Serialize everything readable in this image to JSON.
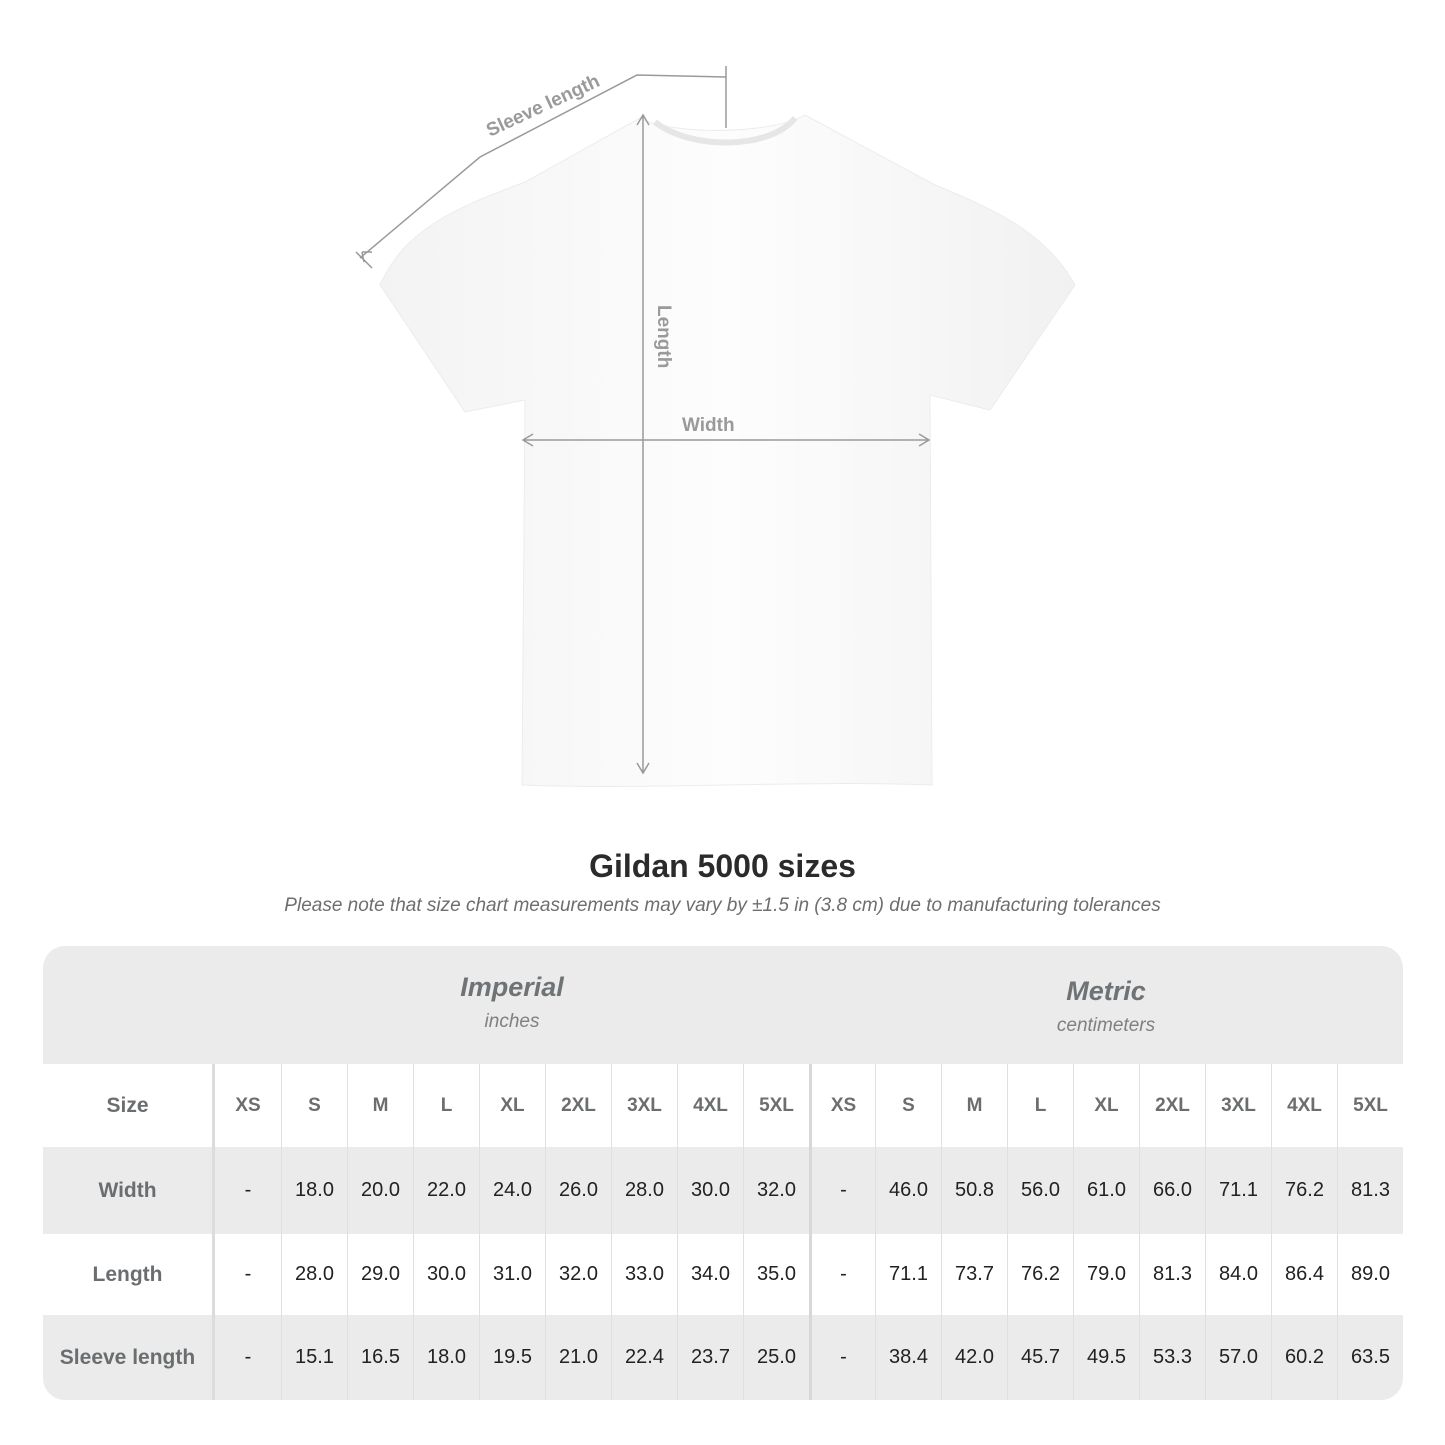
{
  "diagram": {
    "labels": {
      "sleeve": "Sleeve length",
      "length": "Length",
      "width": "Width"
    },
    "colors": {
      "shirt": "#fafafa",
      "lines": "#9a9a9a"
    }
  },
  "title": "Gildan 5000 sizes",
  "note": "Please note that size chart measurements may vary by ±1.5 in (3.8 cm) due to manufacturing tolerances",
  "table": {
    "imperial": {
      "title": "Imperial",
      "unit": "inches"
    },
    "metric": {
      "title": "Metric",
      "unit": "centimeters"
    },
    "size_label": "Size",
    "sizes": [
      "XS",
      "S",
      "M",
      "L",
      "XL",
      "2XL",
      "3XL",
      "4XL",
      "5XL"
    ],
    "rows": [
      {
        "label": "Width",
        "imperial": [
          "-",
          "18.0",
          "20.0",
          "22.0",
          "24.0",
          "26.0",
          "28.0",
          "30.0",
          "32.0"
        ],
        "metric": [
          "-",
          "46.0",
          "50.8",
          "56.0",
          "61.0",
          "66.0",
          "71.1",
          "76.2",
          "81.3"
        ]
      },
      {
        "label": "Length",
        "imperial": [
          "-",
          "28.0",
          "29.0",
          "30.0",
          "31.0",
          "32.0",
          "33.0",
          "34.0",
          "35.0"
        ],
        "metric": [
          "-",
          "71.1",
          "73.7",
          "76.2",
          "79.0",
          "81.3",
          "84.0",
          "86.4",
          "89.0"
        ]
      },
      {
        "label": "Sleeve length",
        "imperial": [
          "-",
          "15.1",
          "16.5",
          "18.0",
          "19.5",
          "21.0",
          "22.4",
          "23.7",
          "25.0"
        ],
        "metric": [
          "-",
          "38.4",
          "42.0",
          "45.7",
          "49.5",
          "53.3",
          "57.0",
          "60.2",
          "63.5"
        ]
      }
    ]
  }
}
